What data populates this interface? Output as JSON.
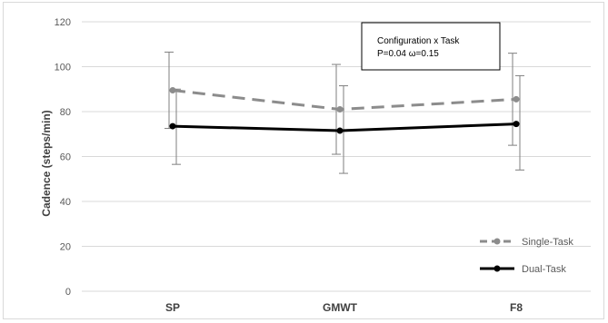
{
  "chart_data": {
    "type": "line",
    "categories": [
      "SP",
      "GMWT",
      "F8"
    ],
    "ylabel": "Cadence (steps/min)",
    "ylim": [
      0,
      120
    ],
    "yticks": [
      0,
      20,
      40,
      60,
      80,
      100,
      120
    ],
    "grid": "horizontal",
    "legend_position": "bottom-right",
    "series": [
      {
        "name": "Single-Task",
        "values": [
          89.5,
          81,
          85.5
        ],
        "error_low": [
          72.5,
          61,
          65
        ],
        "error_high": [
          106.5,
          101,
          106
        ],
        "color": "#8c8c8c",
        "style": "dashed"
      },
      {
        "name": "Dual-Task",
        "values": [
          73.5,
          71.5,
          74.5
        ],
        "error_low": [
          56.5,
          52.5,
          54
        ],
        "error_high": [
          90,
          91.5,
          96
        ],
        "color": "#000000",
        "style": "solid"
      }
    ],
    "annotation": {
      "line1": "Configuration x Task",
      "line2": "P=0.04 ω=0.15"
    }
  }
}
